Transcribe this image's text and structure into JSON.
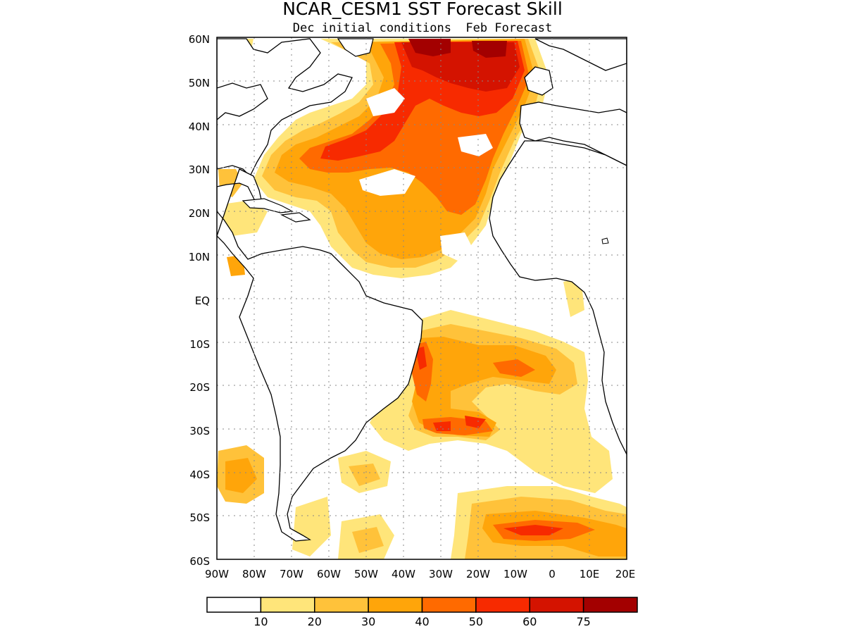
{
  "title": "NCAR_CESM1 SST Forecast Skill",
  "subtitle": "Dec initial conditions  Feb Forecast",
  "lat_labels": [
    "60N",
    "50N",
    "40N",
    "30N",
    "20N",
    "10N",
    "EQ",
    "10S",
    "20S",
    "30S",
    "40S",
    "50S",
    "60S"
  ],
  "lon_labels": [
    "90W",
    "80W",
    "70W",
    "60W",
    "50W",
    "40W",
    "30W",
    "20W",
    "10W",
    "0",
    "10E",
    "20E"
  ],
  "map_extent": {
    "lon_min": -90,
    "lon_max": 20,
    "lat_min": -60,
    "lat_max": 60
  },
  "colorbar": {
    "levels": [
      "10",
      "20",
      "30",
      "40",
      "50",
      "60",
      "75"
    ],
    "colors": [
      "#ffffff",
      "#ffe57a",
      "#ffc23a",
      "#ffa50a",
      "#ff6a00",
      "#f72a00",
      "#d41300",
      "#a30000"
    ]
  },
  "colors": {
    "coast": "#000000",
    "grid": "#888888",
    "background": "#ffffff"
  }
}
